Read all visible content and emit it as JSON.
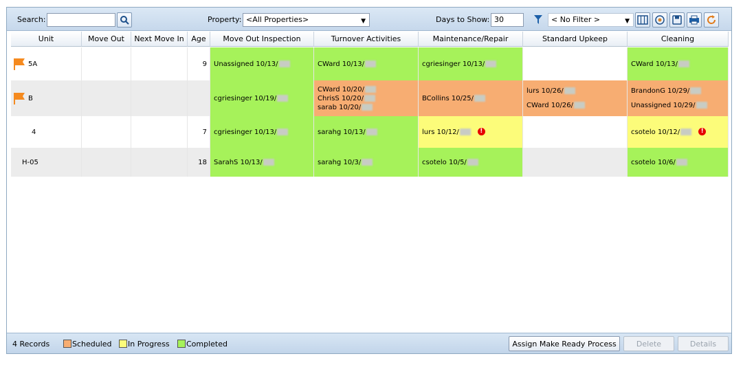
{
  "toolbar": {
    "search_label": "Search:",
    "search_value": "",
    "property_label": "Property:",
    "property_value": "<All Properties>",
    "days_label": "Days to Show:",
    "days_value": "30",
    "filter_value": "< No Filter >",
    "icons": [
      "search-icon",
      "funnel-icon",
      "columns-icon",
      "settings-icon",
      "save-icon",
      "print-icon",
      "refresh-icon"
    ]
  },
  "columns": [
    "Unit",
    "Move Out",
    "Next Move In",
    "Age",
    "Move Out Inspection",
    "Turnover Activities",
    "Maintenance/Repair",
    "Standard Upkeep",
    "Cleaning"
  ],
  "rows": [
    {
      "flag": true,
      "unit": "5A",
      "move_out": "",
      "next_move_in": "",
      "age": "9",
      "inspection": {
        "status": "completed",
        "lines": [
          "Unassigned  10/13/"
        ]
      },
      "turnover": {
        "status": "completed",
        "lines": [
          "CWard  10/13/"
        ]
      },
      "maintenance": {
        "status": "completed",
        "lines": [
          "cgriesinger  10/13/"
        ]
      },
      "upkeep": {
        "status": "",
        "lines": []
      },
      "cleaning": {
        "status": "completed",
        "lines": [
          "CWard  10/13/"
        ]
      }
    },
    {
      "flag": true,
      "unit": "B",
      "move_out": "",
      "next_move_in": "",
      "age": "",
      "inspection": {
        "status": "completed",
        "lines": [
          "cgriesinger  10/19/"
        ]
      },
      "turnover": {
        "status": "scheduled",
        "lines": [
          "CWard 10/20/",
          "ChrisS 10/20/",
          "sarab 10/20/"
        ]
      },
      "maintenance": {
        "status": "scheduled",
        "lines": [
          "BCollins  10/25/"
        ]
      },
      "upkeep": {
        "status": "scheduled",
        "lines": [
          "lurs  10/26/",
          "CWard  10/26/"
        ]
      },
      "cleaning": {
        "status": "scheduled",
        "lines": [
          "BrandonG  10/29/",
          "Unassigned  10/29/"
        ]
      }
    },
    {
      "flag": false,
      "unit": "4",
      "move_out": "",
      "next_move_in": "",
      "age": "7",
      "inspection": {
        "status": "completed",
        "lines": [
          "cgriesinger  10/13/"
        ]
      },
      "turnover": {
        "status": "completed",
        "lines": [
          "sarahg  10/13/"
        ]
      },
      "maintenance": {
        "status": "in_progress",
        "lines": [
          "lurs  10/12/"
        ],
        "alert": "!"
      },
      "upkeep": {
        "status": "",
        "lines": []
      },
      "cleaning": {
        "status": "in_progress",
        "lines": [
          "csotelo  10/12/"
        ],
        "alert": "!"
      }
    },
    {
      "flag": false,
      "unit": "H-05",
      "move_out": "",
      "next_move_in": "",
      "age": "18",
      "inspection": {
        "status": "completed",
        "lines": [
          "SarahS  10/13/"
        ]
      },
      "turnover": {
        "status": "completed",
        "lines": [
          "sarahg  10/3/"
        ]
      },
      "maintenance": {
        "status": "completed",
        "lines": [
          "csotelo  10/5/"
        ]
      },
      "upkeep": {
        "status": "",
        "lines": []
      },
      "cleaning": {
        "status": "completed",
        "lines": [
          "csotelo  10/6/"
        ]
      }
    }
  ],
  "status": {
    "records": "4 Records",
    "legend": [
      {
        "label": "Scheduled",
        "color": "#f7ad72"
      },
      {
        "label": "In Progress",
        "color": "#fcfc7a"
      },
      {
        "label": "Completed",
        "color": "#a6f25a"
      }
    ],
    "assign_label": "Assign Make Ready Process",
    "delete_label": "Delete",
    "details_label": "Details"
  },
  "colors": {
    "completed": "#a6f25a",
    "scheduled": "#f7ad72",
    "in_progress": "#fcfc7a",
    "flag": "#f58a1f",
    "row_alt": "#ececec"
  }
}
